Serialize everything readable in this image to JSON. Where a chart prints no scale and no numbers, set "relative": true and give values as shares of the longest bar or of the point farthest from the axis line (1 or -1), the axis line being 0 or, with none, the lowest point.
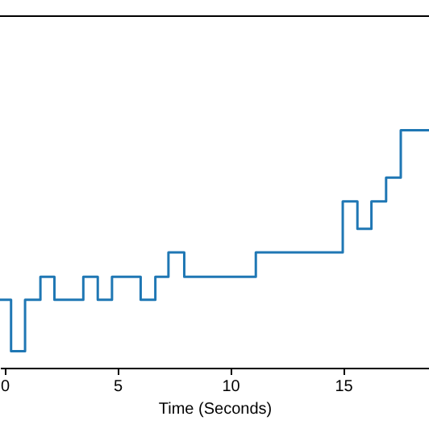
{
  "chart_data": {
    "type": "step",
    "relative": true,
    "xlabel": "Time (Seconds)",
    "x": [
      -0.2,
      0.29,
      0.91,
      1.59,
      2.21,
      3.49,
      4.13,
      4.76,
      6.03,
      6.68,
      7.26,
      7.96,
      11.13,
      14.98,
      15.63,
      16.25,
      16.9,
      17.55,
      18.8
    ],
    "series": [
      {
        "color": "#1f77b4",
        "values": [
          0.286,
          0.07,
          0.286,
          0.383,
          0.286,
          0.383,
          0.286,
          0.383,
          0.286,
          0.383,
          0.485,
          0.383,
          0.485,
          0.7,
          0.585,
          0.7,
          0.8,
          1.0,
          1.0
        ]
      }
    ],
    "xlim": [
      -0.2,
      18.8
    ],
    "xticks": [
      0,
      5,
      10,
      15
    ],
    "tick_labels": "x"
  }
}
